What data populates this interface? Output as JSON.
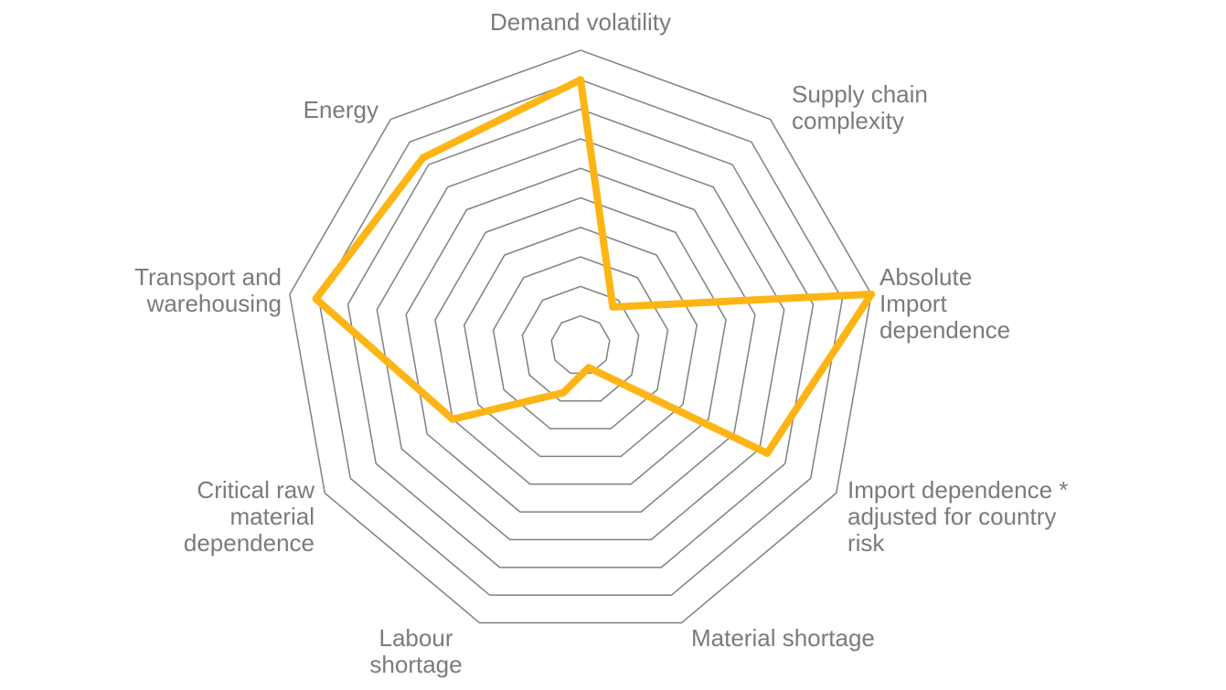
{
  "chart_data": {
    "type": "radar",
    "categories": [
      "Demand volatility",
      "Supply chain\ncomplexity",
      "Absolute\nImport\ndependence",
      "Import dependence *\nadjusted for country\nrisk",
      "Material shortage",
      "Labour\nshortage",
      "Critical raw\nmaterial\ndependence",
      "Transport and\nwarehousing",
      "Energy"
    ],
    "series": [
      {
        "values": [
          9.0,
          1.7,
          10.0,
          7.3,
          0.8,
          1.7,
          5.0,
          9.1,
          8.3
        ],
        "color": "#FDB515"
      }
    ],
    "rlim": [
      0,
      10
    ],
    "rings": 10,
    "grid": true,
    "grid_color": "#808080",
    "label_color": "#7b7b7b"
  }
}
